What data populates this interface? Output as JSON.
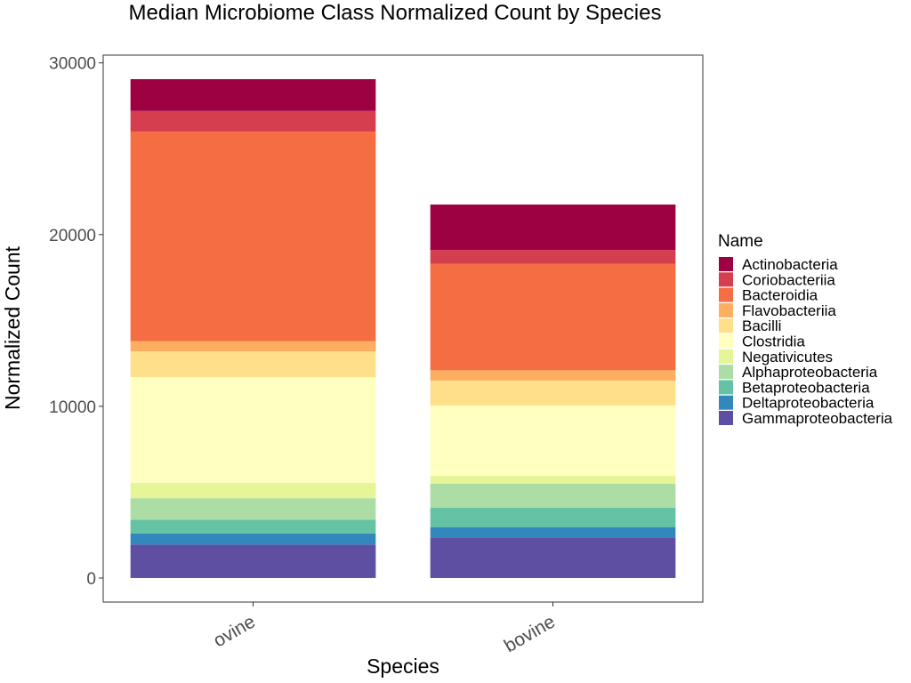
{
  "chart_data": {
    "type": "bar",
    "stacked": true,
    "title": "Median Microbiome Class Normalized Count by Species",
    "xlabel": "Species",
    "ylabel": "Normalized Count",
    "categories": [
      "ovine",
      "bovine"
    ],
    "ylim": [
      -1400,
      30450
    ],
    "yticks": [
      0,
      10000,
      20000,
      30000
    ],
    "grid": false,
    "legend": {
      "title": "Name",
      "placement": "right"
    },
    "series": [
      {
        "name": "Gammaproteobacteria",
        "color": "#5E4FA2",
        "values": [
          1950,
          2350
        ]
      },
      {
        "name": "Deltaproteobacteria",
        "color": "#3288BD",
        "values": [
          650,
          600
        ]
      },
      {
        "name": "Betaproteobacteria",
        "color": "#66C2A5",
        "values": [
          800,
          1150
        ]
      },
      {
        "name": "Alphaproteobacteria",
        "color": "#ABDDA4",
        "values": [
          1250,
          1400
        ]
      },
      {
        "name": "Negativicutes",
        "color": "#E6F598",
        "values": [
          900,
          450
        ]
      },
      {
        "name": "Clostridia",
        "color": "#FFFFBF",
        "values": [
          6150,
          4100
        ]
      },
      {
        "name": "Bacilli",
        "color": "#FEE08B",
        "values": [
          1500,
          1450
        ]
      },
      {
        "name": "Flavobacteriia",
        "color": "#FDAE61",
        "values": [
          600,
          600
        ]
      },
      {
        "name": "Bacteroidia",
        "color": "#F46D43",
        "values": [
          12200,
          6200
        ]
      },
      {
        "name": "Coriobacteriia",
        "color": "#D53E4F",
        "values": [
          1200,
          800
        ]
      },
      {
        "name": "Actinobacteria",
        "color": "#9E0142",
        "values": [
          1850,
          2650
        ]
      }
    ]
  }
}
